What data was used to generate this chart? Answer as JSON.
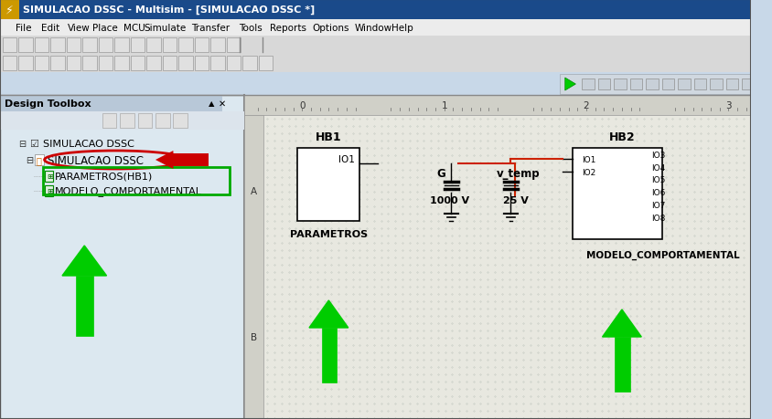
{
  "title_bar": "SIMULACAO DSSC - Multisim - [SIMULACAO DSSC *]",
  "menu_items": [
    "File",
    "Edit",
    "View",
    "Place",
    "MCU",
    "Simulate",
    "Transfer",
    "Tools",
    "Reports",
    "Options",
    "Window",
    "Help"
  ],
  "panel_title": "Design Toolbox",
  "tree_root": "SIMULACAO DSSC",
  "tree_child1": "SIMULACAO DSSC",
  "tree_child2": "PARAMETROS(HB1)",
  "tree_child3": "MODELO_COMPORTAMENTAL",
  "hb1_label": "HB1",
  "hb2_label": "HB2",
  "hb1_port": "IO1",
  "hb2_ports_left": [
    "IO1",
    "IO2"
  ],
  "hb2_ports_right": [
    "IO3",
    "IO4",
    "IO5",
    "IO6",
    "IO7",
    "IO8"
  ],
  "parametros_label": "PARAMETROS",
  "modelo_label": "MODELO_COMPORTAMENTAL",
  "g_label": "G",
  "g_voltage": "1000 V",
  "vtemp_label": "v_temp",
  "vtemp_voltage": "25 V",
  "ruler_numbers": [
    "0",
    "1",
    "2",
    "3"
  ],
  "ruler_A": "A",
  "ruler_B": "B",
  "bg_color": "#c8d8e8",
  "panel_bg": "#dce8f0",
  "canvas_bg": "#e8e8e0",
  "dot_color": "#b0b8b0",
  "title_bar_bg": "#1a4a8a",
  "title_bar_text": "#ffffff",
  "menubar_bg": "#ececec",
  "toolbar_bg": "#d8d8d8",
  "green_arrow_color": "#00cc00",
  "red_arrow_color": "#cc0000",
  "red_oval_color": "#cc0000",
  "green_rect_color": "#00aa00",
  "circuit_line_color": "#000000",
  "red_line_color": "#cc2200"
}
